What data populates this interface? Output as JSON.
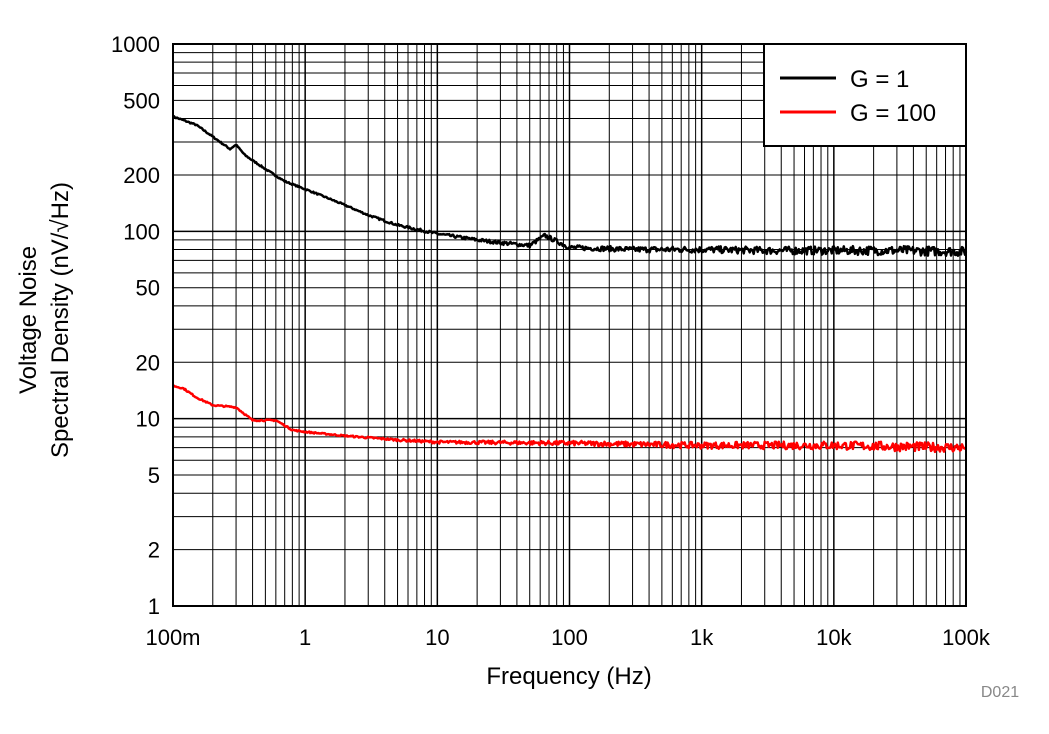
{
  "chart_data": {
    "type": "line",
    "xlabel": "Frequency (Hz)",
    "ylabel_lines": [
      "Voltage Noise",
      "Spectral Density (nV/√Hz)"
    ],
    "x_scale": "log",
    "y_scale": "log",
    "xlim": [
      0.1,
      100000
    ],
    "ylim": [
      1,
      1000
    ],
    "grid": true,
    "x_ticks": [
      {
        "value": 0.1,
        "label": "100m"
      },
      {
        "value": 1,
        "label": "1"
      },
      {
        "value": 10,
        "label": "10"
      },
      {
        "value": 100,
        "label": "100"
      },
      {
        "value": 1000,
        "label": "1k"
      },
      {
        "value": 10000,
        "label": "10k"
      },
      {
        "value": 100000,
        "label": "100k"
      }
    ],
    "y_ticks": [
      {
        "value": 1,
        "label": "1"
      },
      {
        "value": 2,
        "label": "2"
      },
      {
        "value": 5,
        "label": "5"
      },
      {
        "value": 10,
        "label": "10"
      },
      {
        "value": 20,
        "label": "20"
      },
      {
        "value": 50,
        "label": "50"
      },
      {
        "value": 100,
        "label": "100"
      },
      {
        "value": 200,
        "label": "200"
      },
      {
        "value": 500,
        "label": "500"
      },
      {
        "value": 1000,
        "label": "1000"
      }
    ],
    "legend_position": "top-right",
    "series": [
      {
        "name": "G = 1",
        "color": "#000000",
        "x": [
          0.1,
          0.15,
          0.2,
          0.27,
          0.3,
          0.35,
          0.5,
          0.7,
          1,
          1.5,
          2,
          3,
          5,
          10,
          20,
          30,
          50,
          65,
          100,
          300,
          1000,
          3000,
          10000,
          30000,
          100000
        ],
        "y": [
          410,
          370,
          320,
          275,
          290,
          255,
          215,
          185,
          168,
          150,
          138,
          122,
          108,
          97,
          90,
          87,
          84,
          95,
          82,
          80,
          80,
          79,
          79,
          79,
          78
        ]
      },
      {
        "name": "G = 100",
        "color": "#ff0000",
        "x": [
          0.1,
          0.12,
          0.15,
          0.2,
          0.3,
          0.4,
          0.6,
          0.8,
          1,
          2,
          5,
          10,
          100,
          1000,
          10000,
          100000
        ],
        "y": [
          15,
          14.5,
          13,
          11.8,
          11.5,
          9.8,
          9.8,
          8.7,
          8.5,
          8.1,
          7.7,
          7.5,
          7.4,
          7.2,
          7.2,
          7.0
        ]
      }
    ]
  },
  "watermark": "D021"
}
